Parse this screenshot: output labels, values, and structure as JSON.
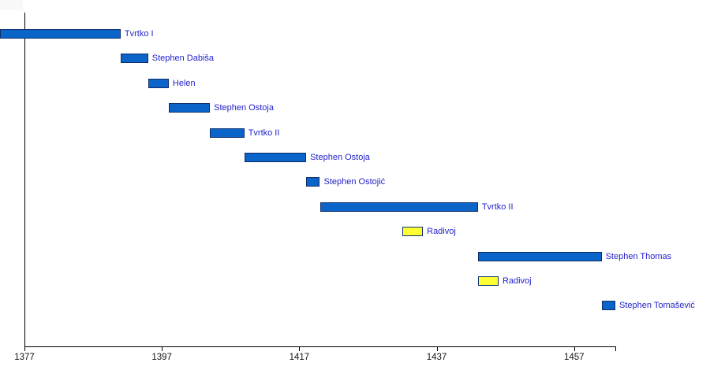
{
  "chart_data": {
    "type": "bar",
    "subtype": "horizontal-gantt-timeline",
    "title": "",
    "xlabel": "",
    "ylabel": "",
    "legend": "none",
    "grid": false,
    "x_axis": {
      "unit": "year",
      "min": 1377,
      "max": 1463,
      "ticks": [
        1377,
        1397,
        1417,
        1437,
        1457
      ],
      "has_unlabeled_end_tick": true
    },
    "rows": [
      {
        "label": "Tvrtko I",
        "start": 1353,
        "end": 1391,
        "color": "blue",
        "clipped_left": true
      },
      {
        "label": "Stephen Dabiša",
        "start": 1391,
        "end": 1395,
        "color": "blue"
      },
      {
        "label": "Helen",
        "start": 1395,
        "end": 1398,
        "color": "blue"
      },
      {
        "label": "Stephen Ostoja",
        "start": 1398,
        "end": 1404,
        "color": "blue"
      },
      {
        "label": "Tvrtko II",
        "start": 1404,
        "end": 1409,
        "color": "blue"
      },
      {
        "label": "Stephen Ostoja",
        "start": 1409,
        "end": 1418,
        "color": "blue"
      },
      {
        "label": "Stephen Ostojić",
        "start": 1418,
        "end": 1420,
        "color": "blue"
      },
      {
        "label": "Tvrtko II",
        "start": 1420,
        "end": 1443,
        "color": "blue"
      },
      {
        "label": "Radivoj",
        "start": 1432,
        "end": 1435,
        "color": "yellow"
      },
      {
        "label": "Stephen Thomas",
        "start": 1443,
        "end": 1461,
        "color": "blue"
      },
      {
        "label": "Radivoj",
        "start": 1443,
        "end": 1446,
        "color": "yellow"
      },
      {
        "label": "Stephen Tomašević",
        "start": 1461,
        "end": 1463,
        "color": "blue"
      }
    ],
    "colors": {
      "bar_blue": "#0b64c8",
      "bar_yellow": "#ffff33",
      "bar_border": "#0d2d6b",
      "label_text": "#2222cc",
      "axis": "#000000",
      "background": "#ffffff"
    }
  }
}
